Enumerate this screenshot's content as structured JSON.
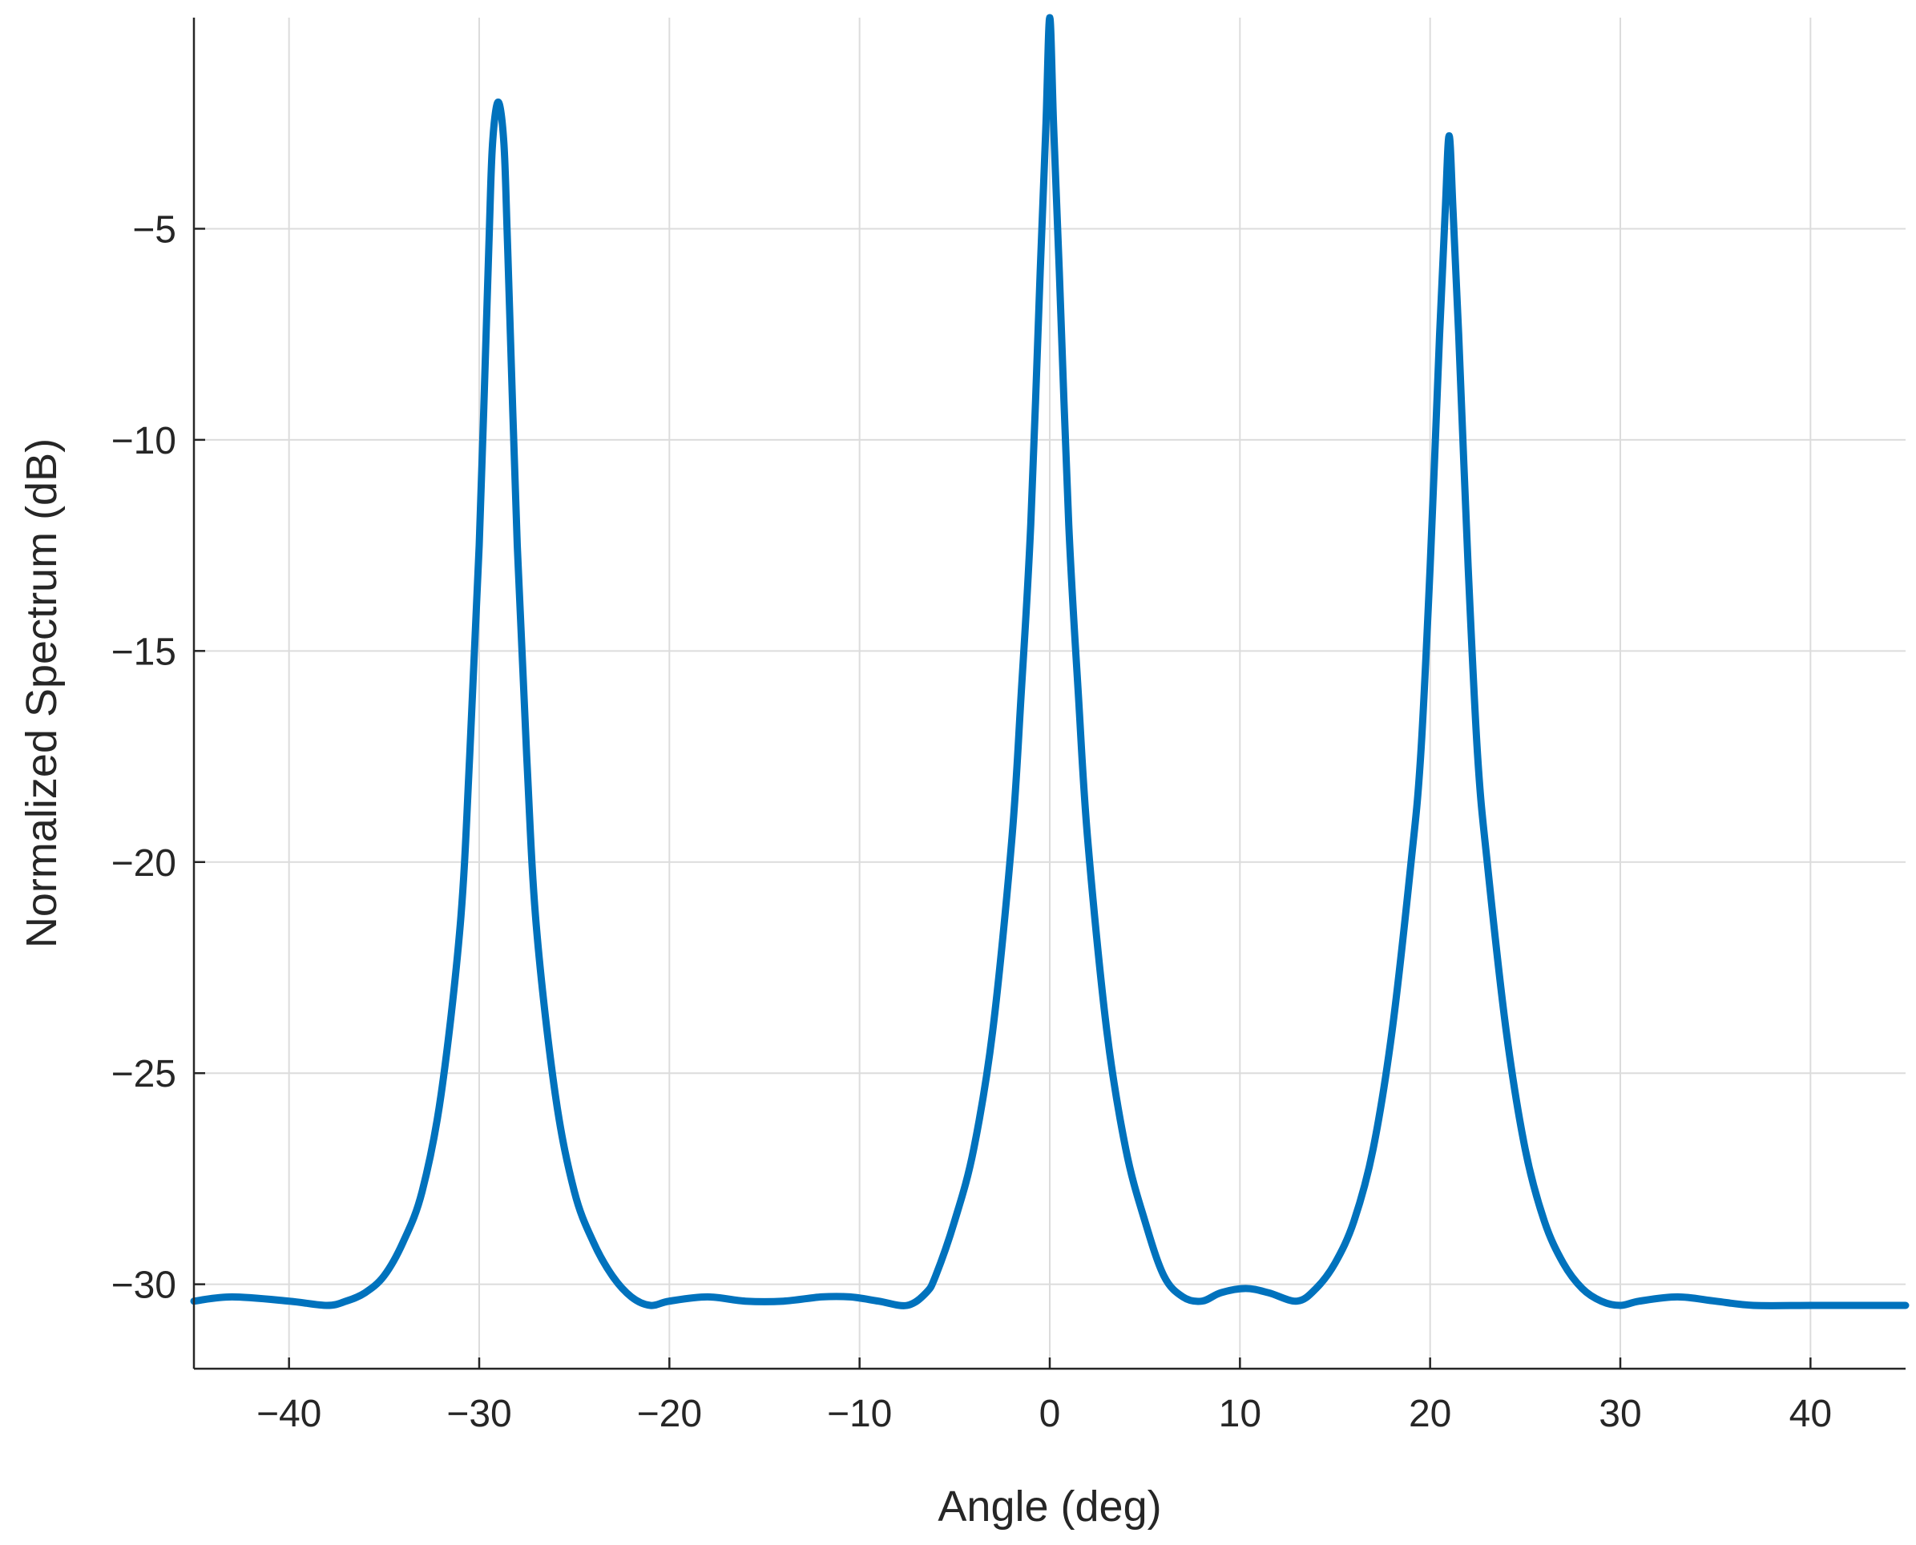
{
  "chart_data": {
    "type": "line",
    "title": "",
    "xlabel": "Angle (deg)",
    "ylabel": "Normalized Spectrum (dB)",
    "xlim": [
      -45,
      45
    ],
    "ylim": [
      -32,
      0
    ],
    "xticks": [
      -40,
      -30,
      -20,
      -10,
      0,
      10,
      20,
      30,
      40
    ],
    "xtick_labels": [
      "−40",
      "−30",
      "−20",
      "−10",
      "0",
      "10",
      "20",
      "30",
      "40"
    ],
    "yticks": [
      -5,
      -10,
      -15,
      -20,
      -25,
      -30
    ],
    "ytick_labels": [
      "−5",
      "−10",
      "−15",
      "−20",
      "−25",
      "−30"
    ],
    "grid": true,
    "legend": "none",
    "series": [
      {
        "color": "#0072BD",
        "x": [
          -45,
          -43,
          -40,
          -38,
          -37,
          -36,
          -35,
          -34,
          -33,
          -32,
          -31,
          -30.5,
          -30,
          -29.5,
          -29.3,
          -29,
          -28.7,
          -28.5,
          -28,
          -27.5,
          -27,
          -26,
          -25,
          -24,
          -23,
          -22,
          -21,
          -20,
          -18,
          -16,
          -14,
          -12,
          -10.5,
          -9,
          -7.5,
          -6.5,
          -6,
          -5,
          -4,
          -3,
          -2,
          -1.5,
          -1,
          -0.5,
          -0.2,
          0,
          0.2,
          0.5,
          1,
          1.5,
          2,
          3,
          4,
          5,
          6,
          7,
          8,
          9,
          10.3,
          11.5,
          13,
          14,
          15,
          16,
          17,
          18,
          19,
          19.5,
          20,
          20.5,
          20.8,
          21,
          21.2,
          21.5,
          22,
          22.5,
          23,
          24,
          25,
          26,
          27,
          28,
          29,
          30,
          31,
          33,
          35,
          37,
          40,
          43,
          45
        ],
        "y": [
          -30.4,
          -30.3,
          -30.4,
          -30.5,
          -30.4,
          -30.2,
          -29.8,
          -29.0,
          -27.8,
          -25.5,
          -21.5,
          -17.5,
          -12.5,
          -5.5,
          -3.0,
          -2.0,
          -3.0,
          -5.5,
          -12.5,
          -17.5,
          -21.5,
          -25.5,
          -27.8,
          -29.0,
          -29.8,
          -30.3,
          -30.5,
          -30.4,
          -30.3,
          -30.4,
          -30.4,
          -30.3,
          -30.3,
          -30.4,
          -30.5,
          -30.2,
          -29.8,
          -28.5,
          -26.8,
          -24.0,
          -19.5,
          -16.0,
          -12.0,
          -6.0,
          -2.5,
          0.0,
          -2.5,
          -6.0,
          -12.0,
          -16.0,
          -19.5,
          -24.0,
          -26.8,
          -28.5,
          -29.8,
          -30.3,
          -30.4,
          -30.2,
          -30.1,
          -30.2,
          -30.4,
          -30.1,
          -29.5,
          -28.5,
          -26.8,
          -24.0,
          -20.0,
          -17.5,
          -13.0,
          -7.5,
          -4.5,
          -2.8,
          -4.5,
          -7.5,
          -13.0,
          -17.5,
          -20.0,
          -24.0,
          -26.8,
          -28.5,
          -29.5,
          -30.1,
          -30.4,
          -30.5,
          -30.4,
          -30.3,
          -30.4,
          -30.5,
          -30.5,
          -30.5,
          -30.5
        ]
      }
    ]
  }
}
